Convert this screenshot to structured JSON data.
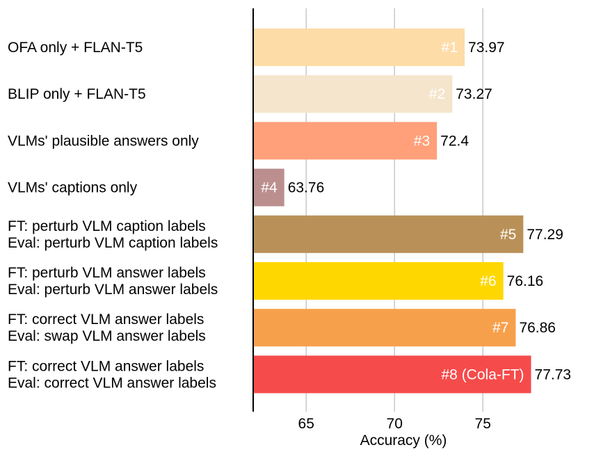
{
  "chart_data": {
    "type": "bar",
    "orientation": "horizontal",
    "title": "",
    "xlabel": "Accuracy (%)",
    "ylabel": "",
    "xlim": [
      62,
      78.6
    ],
    "xticks": [
      65,
      70,
      75
    ],
    "xtick_labels": [
      "65",
      "70",
      "75"
    ],
    "grid": "vertical",
    "categories": [
      [
        "OFA only + FLAN-T5"
      ],
      [
        "BLIP only + FLAN-T5"
      ],
      [
        "VLMs' plausible answers only"
      ],
      [
        "VLMs' captions only"
      ],
      [
        "FT: perturb VLM caption labels",
        "Eval: perturb VLM caption labels"
      ],
      [
        "FT: perturb VLM answer labels",
        "Eval: perturb VLM answer labels"
      ],
      [
        "FT: correct VLM answer labels",
        "Eval: swap VLM answer labels"
      ],
      [
        "FT: correct VLM answer labels",
        "Eval: correct VLM answer labels"
      ]
    ],
    "values": [
      73.97,
      73.27,
      72.4,
      63.76,
      77.29,
      76.16,
      76.86,
      77.73
    ],
    "value_labels": [
      "73.97",
      "73.27",
      "72.4",
      "63.76",
      "77.29",
      "76.16",
      "76.86",
      "77.73"
    ],
    "rank_labels": [
      "#1",
      "#2",
      "#3",
      "#4",
      "#5",
      "#6",
      "#7",
      "#8 (Cola-FT)"
    ],
    "colors": [
      "#FDDCA8",
      "#F5E5CC",
      "#FFA07A",
      "#BC8F8F",
      "#B99158",
      "#FFD700",
      "#F7A04C",
      "#F54B4B"
    ]
  }
}
